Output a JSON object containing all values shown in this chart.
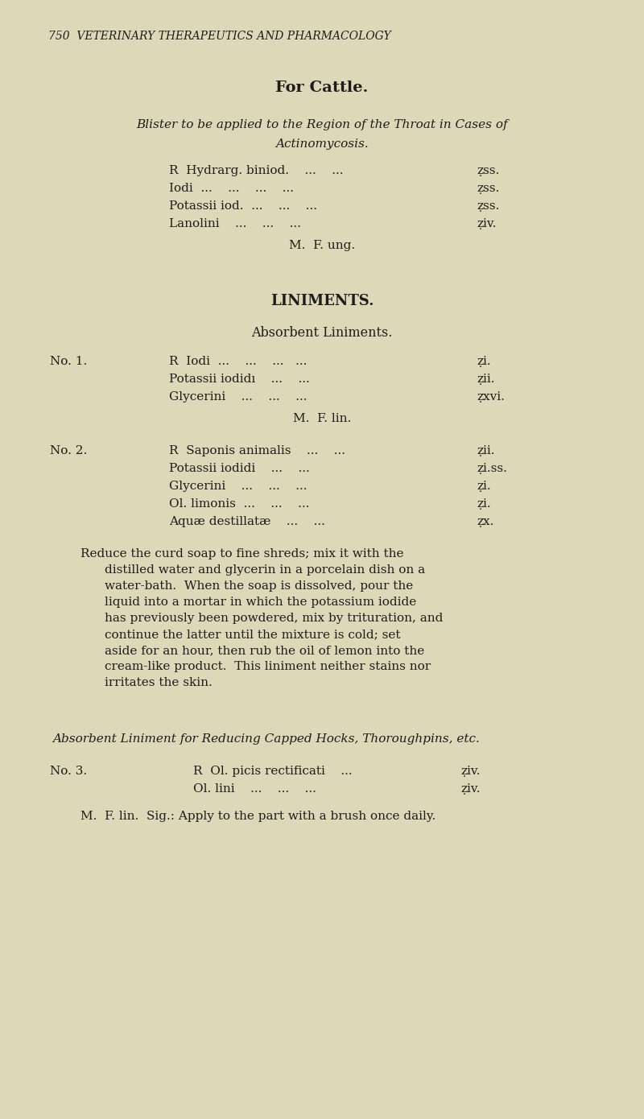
{
  "bg_color": "#ddd9b8",
  "text_color": "#1c1c1c",
  "header": "750  VETERINARY THERAPEUTICS AND PHARMACOLOGY",
  "section_title": "For Cattle.",
  "blister_lines": [
    [
      "R  Hydrarg. biniod.    ...    ...",
      "ẓss."
    ],
    [
      "Iodi  ...    ...    ...    ...",
      "ẓss."
    ],
    [
      "Potassii iod.  ...    ...    ...",
      "ẓss."
    ],
    [
      "Lanolini    ...    ...    ...",
      "ẓiv."
    ]
  ],
  "blister_mf": "M.  F. ung.",
  "liniments_title": "LINIMENTS.",
  "absorbent_title": "Absorbent Liniments.",
  "no1_label": "No. 1.",
  "no1_lines": [
    [
      "R  Iodi  ...    ...    ...   ...",
      "ẓi."
    ],
    [
      "Potassii iodidı    ...    ...",
      "ẓii."
    ],
    [
      "Glycerini    ...    ...    ...",
      "ẓxvi."
    ]
  ],
  "no1_mf": "M.  F. lin.",
  "no2_label": "No. 2.",
  "no2_lines": [
    [
      "R  Saponis animalis    ...    ...",
      "ẓii."
    ],
    [
      "Potassii iodidi    ...    ...",
      "ẓi.ss."
    ],
    [
      "Glycerini    ...    ...    ...",
      "ẓi."
    ],
    [
      "Ol. limonis  ...    ...    ...",
      "ẓi."
    ],
    [
      "Aquæ destillatæ    ...    ...",
      "ẓx."
    ]
  ],
  "para_line1": "Reduce the curd soap to fine shreds; mix it with the",
  "para_rest": [
    "distilled water and glycerin in a porcelain dish on a",
    "water-bath.  When the soap is dissolved, pour the",
    "liquid into a mortar in which the potassium iodide",
    "has previously been powdered, mix by trituration, and",
    "continue the latter until the mixture is cold; set",
    "aside for an hour, then rub the oil of lemon into the",
    "cream-like product.  This liniment neither stains nor",
    "irritates the skin."
  ],
  "absorbent2_subtitle": "Absorbent Liniment for Reducing Capped Hocks, Thoroughpins, etc.",
  "no3_label": "No. 3.",
  "no3_lines": [
    [
      "R  Ol. picis rectificati    ...",
      "ẓiv."
    ],
    [
      "Ol. lini    ...    ...    ...",
      "ẓiv."
    ]
  ],
  "last_line": "M.  F. lin.  Sig.: Apply to the part with a brush once daily."
}
